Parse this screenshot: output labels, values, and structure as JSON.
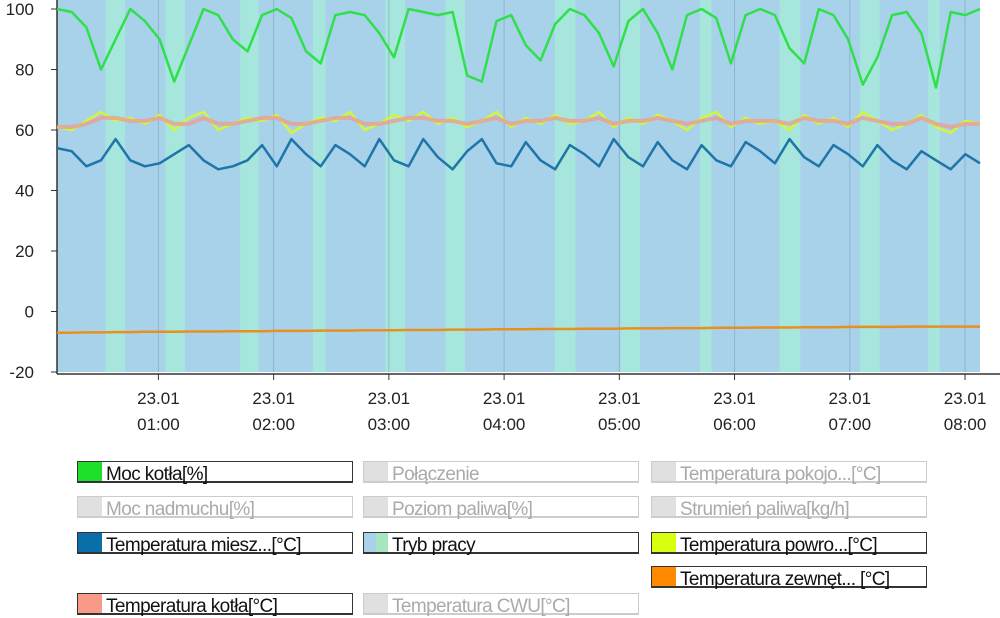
{
  "chart_data": {
    "type": "line",
    "title": "",
    "xlabel": "",
    "ylabel": "",
    "xlim_hours": [
      0.12,
      8.13
    ],
    "ylim": [
      -20,
      100
    ],
    "yticks": [
      "100",
      "80",
      "60",
      "40",
      "20",
      "0",
      "-20"
    ],
    "ytick_values": [
      100,
      80,
      60,
      40,
      20,
      0,
      -20
    ],
    "xticks": [
      {
        "date": "23.01",
        "time": "01:00",
        "h": 1
      },
      {
        "date": "23.01",
        "time": "02:00",
        "h": 2
      },
      {
        "date": "23.01",
        "time": "03:00",
        "h": 3
      },
      {
        "date": "23.01",
        "time": "04:00",
        "h": 4
      },
      {
        "date": "23.01",
        "time": "05:00",
        "h": 5
      },
      {
        "date": "23.01",
        "time": "06:00",
        "h": 6
      },
      {
        "date": "23.01",
        "time": "07:00",
        "h": 7
      },
      {
        "date": "23.01",
        "time": "08:00",
        "h": 8
      }
    ],
    "tryb_pracy_bands_hours": [
      [
        0.54,
        0.71
      ],
      [
        1.06,
        1.23
      ],
      [
        1.71,
        1.87
      ],
      [
        2.34,
        2.45
      ],
      [
        2.97,
        3.14
      ],
      [
        3.49,
        3.66
      ],
      [
        4.44,
        4.62
      ],
      [
        5.01,
        5.18
      ],
      [
        5.7,
        5.8
      ],
      [
        6.39,
        6.57
      ],
      [
        7.09,
        7.26
      ],
      [
        7.68,
        7.78
      ]
    ],
    "series": [
      {
        "name": "Moc kotła[%]",
        "color": "#2fe04a",
        "values": [
          100,
          99,
          94,
          80,
          90,
          100,
          96,
          90,
          76,
          88,
          100,
          98,
          90,
          86,
          98,
          100,
          97,
          86,
          82,
          98,
          99,
          98,
          92,
          84,
          100,
          99,
          98,
          99,
          78,
          76,
          96,
          98,
          88,
          83,
          95,
          100,
          98,
          92,
          81,
          96,
          100,
          92,
          80,
          98,
          100,
          97,
          82,
          98,
          100,
          98,
          87,
          82,
          100,
          98,
          90,
          75,
          84,
          98,
          99,
          92,
          74,
          99,
          98,
          100
        ]
      },
      {
        "name": "Temperatura kotła[°C]",
        "color": "#e8a090",
        "values": [
          61,
          61,
          62,
          64,
          64,
          63,
          63,
          64,
          62,
          62,
          64,
          62,
          62,
          63,
          64,
          64,
          62,
          62,
          63,
          64,
          64,
          62,
          62,
          63,
          64,
          64,
          63,
          63,
          62,
          63,
          64,
          62,
          63,
          63,
          64,
          63,
          63,
          64,
          62,
          63,
          63,
          64,
          63,
          62,
          63,
          64,
          62,
          63,
          63,
          63,
          62,
          64,
          63,
          63,
          62,
          64,
          63,
          62,
          62,
          64,
          62,
          61,
          62,
          62
        ]
      },
      {
        "name": "Temperatura powro...[°C]",
        "color": "#d4f53a",
        "values": [
          61,
          60,
          63,
          66,
          63,
          64,
          62,
          65,
          60,
          64,
          66,
          60,
          62,
          64,
          63,
          65,
          59,
          62,
          64,
          63,
          66,
          60,
          62,
          65,
          63,
          66,
          62,
          64,
          61,
          63,
          66,
          61,
          64,
          62,
          65,
          62,
          63,
          66,
          61,
          64,
          62,
          65,
          63,
          60,
          64,
          66,
          61,
          64,
          62,
          63,
          60,
          65,
          62,
          64,
          61,
          66,
          63,
          60,
          62,
          65,
          61,
          59,
          63,
          62
        ]
      },
      {
        "name": "Temperatura miesz...[°C]",
        "color": "#1f75a8",
        "values": [
          54,
          53,
          48,
          50,
          57,
          50,
          48,
          49,
          52,
          55,
          50,
          47,
          48,
          50,
          55,
          48,
          57,
          52,
          48,
          55,
          52,
          48,
          57,
          50,
          48,
          57,
          51,
          47,
          53,
          57,
          49,
          48,
          56,
          50,
          47,
          55,
          52,
          48,
          57,
          51,
          48,
          56,
          50,
          47,
          55,
          50,
          48,
          56,
          53,
          49,
          57,
          51,
          48,
          55,
          52,
          48,
          55,
          50,
          47,
          53,
          50,
          47,
          52,
          49
        ]
      },
      {
        "name": "Temperatura zewnęt...[°C]",
        "color": "#e8901e",
        "values": [
          -7,
          -7,
          -6.9,
          -6.9,
          -6.8,
          -6.8,
          -6.7,
          -6.7,
          -6.7,
          -6.6,
          -6.6,
          -6.6,
          -6.5,
          -6.5,
          -6.5,
          -6.4,
          -6.4,
          -6.4,
          -6.3,
          -6.3,
          -6.3,
          -6.2,
          -6.2,
          -6.2,
          -6.1,
          -6.1,
          -6.1,
          -6,
          -6,
          -6,
          -5.9,
          -5.9,
          -5.9,
          -5.8,
          -5.8,
          -5.8,
          -5.7,
          -5.7,
          -5.7,
          -5.6,
          -5.6,
          -5.6,
          -5.5,
          -5.5,
          -5.5,
          -5.4,
          -5.4,
          -5.4,
          -5.3,
          -5.3,
          -5.3,
          -5.2,
          -5.2,
          -5.2,
          -5.1,
          -5.1,
          -5.1,
          -5.1,
          -5,
          -5,
          -5,
          -5,
          -5,
          -5
        ]
      }
    ],
    "band_colors": {
      "base": "#a8d2ea",
      "active": "#a6e6dc"
    }
  },
  "legend": [
    {
      "label": "Moc kotła[%]",
      "color": "#1ee02a",
      "active": true
    },
    {
      "label": "Połączenie",
      "color": "#e0e0e0",
      "active": false
    },
    {
      "label": "Temperatura pokojo...[°C]",
      "color": "#e0e0e0",
      "active": false
    },
    {
      "label": "Moc nadmuchu[%]",
      "color": "#e0e0e0",
      "active": false
    },
    {
      "label": "Poziom paliwa[%]",
      "color": "#e0e0e0",
      "active": false
    },
    {
      "label": "Strumień paliwa[kg/h]",
      "color": "#e0e0e0",
      "active": false
    },
    {
      "label": "Temperatura miesz...[°C]",
      "color": "#0a6fa8",
      "active": true
    },
    {
      "label": "Tryb pracy",
      "color": "linear-gradient(90deg,#a8d2ea 50%,#a6e6c0 50%)",
      "active": true
    },
    {
      "label": "Temperatura powro...[°C]",
      "color": "#d8ff10",
      "active": true
    },
    {
      "label": "Temperatura zewnęt... [°C]",
      "color": "#ff8a00",
      "active": true
    },
    {
      "label": "Temperatura kotła[°C]",
      "color": "#f89a88",
      "active": true
    },
    {
      "label": "Temperatura CWU[°C]",
      "color": "#e0e0e0",
      "active": false
    }
  ]
}
